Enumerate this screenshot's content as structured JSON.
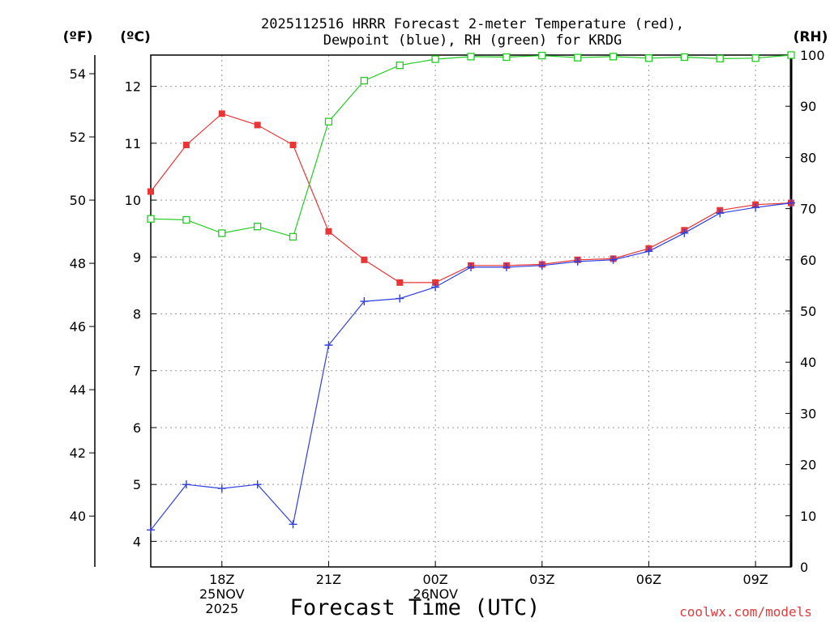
{
  "chart_data": {
    "type": "line",
    "title_line1": "2025112516 HRRR Forecast 2-meter Temperature (red),",
    "title_line2": "Dewpoint (blue), RH (green) for KRDG",
    "unit_f": "(ºF)",
    "unit_c": "(ºC)",
    "unit_rh": "(RH)",
    "xlabel": "Forecast Time (UTC)",
    "credit": "coolwx.com/models",
    "x": [
      16,
      17,
      18,
      19,
      20,
      21,
      22,
      23,
      24,
      25,
      26,
      27,
      28,
      29,
      30,
      31,
      32,
      33,
      34
    ],
    "xlim": [
      16,
      34
    ],
    "x_ticks": [
      {
        "x": 18,
        "lines": [
          "18Z",
          "25NOV",
          "2025"
        ]
      },
      {
        "x": 21,
        "lines": [
          "21Z"
        ]
      },
      {
        "x": 24,
        "lines": [
          "00Z",
          "26NOV"
        ]
      },
      {
        "x": 27,
        "lines": [
          "03Z"
        ]
      },
      {
        "x": 30,
        "lines": [
          "06Z"
        ]
      },
      {
        "x": 33,
        "lines": [
          "09Z"
        ]
      }
    ],
    "ylim_c": [
      3.55,
      12.55
    ],
    "ticks_c": [
      "4",
      "5",
      "6",
      "7",
      "8",
      "9",
      "10",
      "11",
      "12"
    ],
    "ticks_f": [
      "40",
      "42",
      "44",
      "46",
      "48",
      "50",
      "52",
      "54"
    ],
    "ylim_rh": [
      0,
      100
    ],
    "ticks_rh": [
      "0",
      "10",
      "20",
      "30",
      "40",
      "50",
      "60",
      "70",
      "80",
      "90",
      "100"
    ],
    "series": [
      {
        "name": "Temperature",
        "unit": "C",
        "color": "#e83535",
        "marker": "filled-square",
        "values": [
          10.15,
          10.97,
          11.52,
          11.32,
          10.97,
          9.45,
          8.95,
          8.55,
          8.55,
          8.85,
          8.85,
          8.87,
          8.95,
          8.97,
          9.15,
          9.47,
          9.82,
          9.92,
          9.95
        ]
      },
      {
        "name": "Dewpoint",
        "unit": "C",
        "color": "#2f3fe0",
        "marker": "plus",
        "values": [
          4.2,
          5.0,
          4.93,
          5.0,
          4.3,
          7.45,
          8.22,
          8.27,
          8.47,
          8.82,
          8.82,
          8.85,
          8.92,
          8.95,
          9.1,
          9.42,
          9.77,
          9.87,
          9.95
        ]
      },
      {
        "name": "RH",
        "unit": "%",
        "color": "#22cc22",
        "marker": "open-square",
        "values": [
          68,
          67.8,
          65.2,
          66.5,
          64.5,
          87,
          95,
          98,
          99.2,
          99.7,
          99.6,
          99.9,
          99.5,
          99.7,
          99.4,
          99.6,
          99.3,
          99.4,
          100
        ]
      }
    ]
  }
}
